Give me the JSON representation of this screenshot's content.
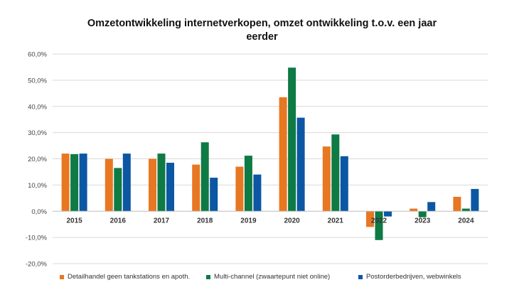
{
  "chart_data": {
    "type": "bar",
    "title_lines": [
      "Omzetontwikkeling internetverkopen, omzet ontwikkeling t.o.v. een jaar",
      "eerder"
    ],
    "categories": [
      "2015",
      "2016",
      "2017",
      "2018",
      "2019",
      "2020",
      "2021",
      "2022",
      "2023",
      "2024"
    ],
    "series": [
      {
        "name": "Detailhandel geen tankstations en apoth.",
        "color": "#E87722",
        "values": [
          22.0,
          20.0,
          20.0,
          17.8,
          17.0,
          43.5,
          24.7,
          -6.0,
          1.0,
          5.5
        ]
      },
      {
        "name": "Multi-channel (zwaartepunt niet online)",
        "color": "#0E7A44",
        "values": [
          21.8,
          16.5,
          22.0,
          26.3,
          21.2,
          54.8,
          29.3,
          -11.0,
          -2.3,
          1.0
        ]
      },
      {
        "name": "Postorderbedrijven, webwinkels",
        "color": "#0B57A4",
        "values": [
          22.0,
          22.0,
          18.5,
          12.8,
          14.0,
          35.7,
          21.0,
          -2.0,
          3.5,
          8.5
        ]
      }
    ],
    "ylim": [
      -20,
      60
    ],
    "yticks": [
      -20,
      -10,
      0,
      10,
      20,
      30,
      40,
      50,
      60
    ],
    "ytick_labels": [
      "-20,0%",
      "-10,0%",
      "0,0%",
      "10,0%",
      "20,0%",
      "30,0%",
      "40,0%",
      "50,0%",
      "60,0%"
    ],
    "grid": true,
    "legend_position": "bottom"
  }
}
